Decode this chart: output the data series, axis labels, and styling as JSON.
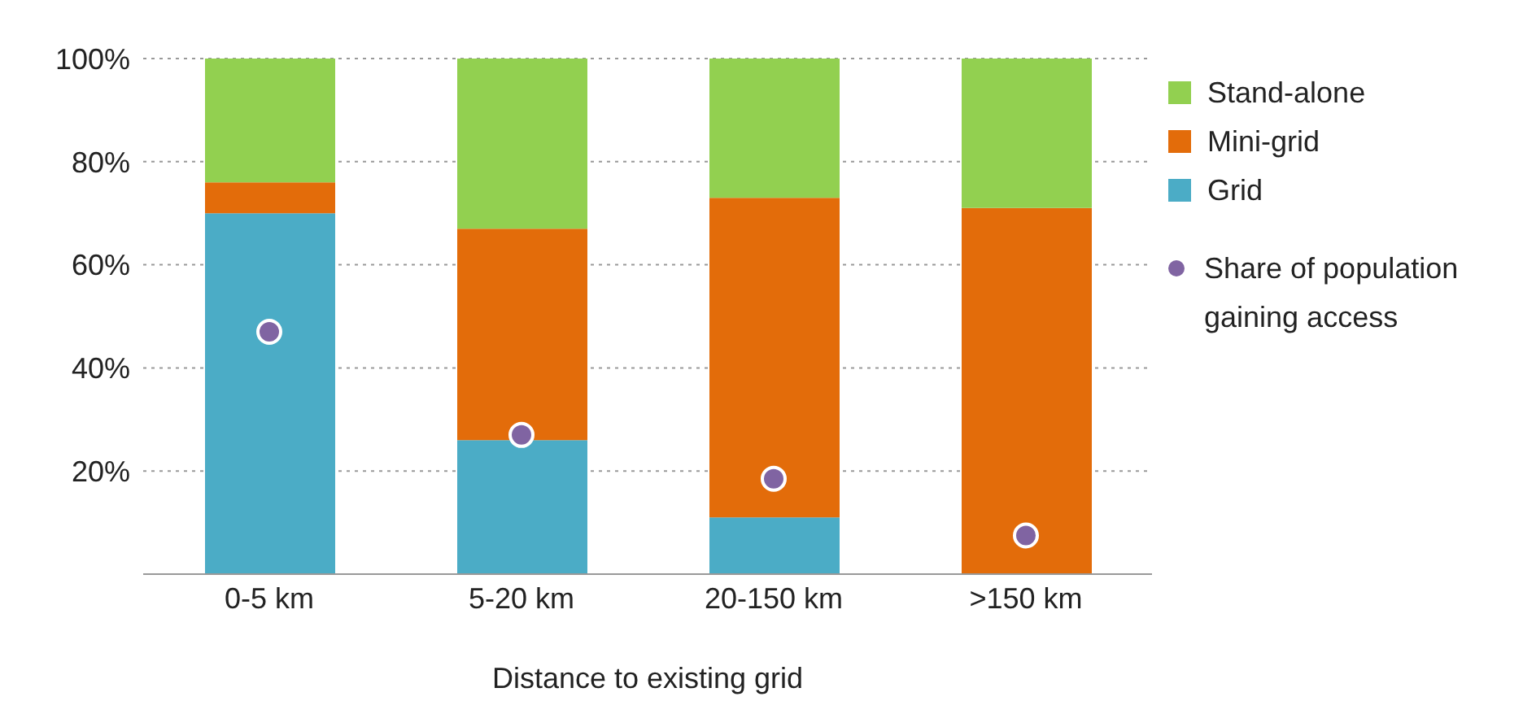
{
  "chart_data": {
    "type": "bar",
    "stacked": true,
    "xlabel": "Distance to existing grid",
    "categories": [
      "0-5 km",
      "5-20 km",
      "20-150 km",
      ">150 km"
    ],
    "series": [
      {
        "name": "Grid",
        "color": "#4bacc6",
        "values": [
          70,
          26,
          11,
          0
        ]
      },
      {
        "name": "Mini-grid",
        "color": "#e36c0a",
        "values": [
          6,
          41,
          62,
          71
        ]
      },
      {
        "name": "Stand-alone",
        "color": "#92d050",
        "values": [
          24,
          33,
          27,
          29
        ]
      },
      {
        "name": "Share of population gaining access",
        "type": "scatter",
        "color": "#8064a2",
        "values": [
          47,
          27,
          18.5,
          7.5
        ]
      }
    ],
    "ylim": [
      0,
      100
    ],
    "yticks": [
      {
        "value": 20,
        "label": "20%"
      },
      {
        "value": 40,
        "label": "40%"
      },
      {
        "value": 60,
        "label": "60%"
      },
      {
        "value": 80,
        "label": "80%"
      },
      {
        "value": 100,
        "label": "100%"
      }
    ],
    "grid": "y",
    "legend": "right",
    "marker": "circle"
  }
}
